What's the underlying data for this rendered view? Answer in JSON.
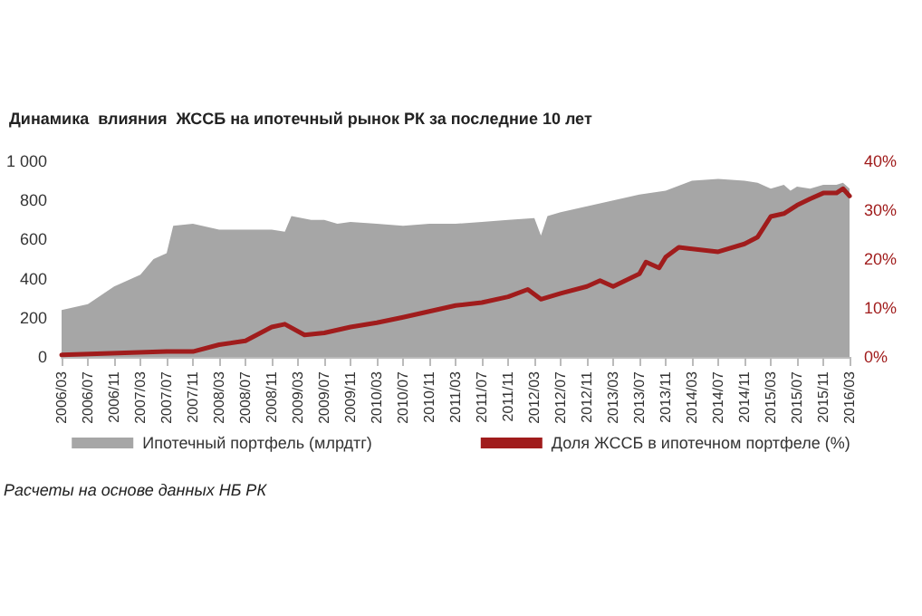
{
  "chart_data": {
    "type": "area",
    "title": "Динамика  влияния  ЖССБ на ипотечный рынок РК за последние 10 лет",
    "annotations": [
      "Расчеты на основе данных НБ РК"
    ],
    "xlim": [
      "2006-03",
      "2016-03"
    ],
    "xticks": [
      {
        "value": "2006-03",
        "label": "2006/03"
      },
      {
        "value": "2006-07",
        "label": "2006/07"
      },
      {
        "value": "2006-11",
        "label": "2006/11"
      },
      {
        "value": "2007-03",
        "label": "2007/03"
      },
      {
        "value": "2007-07",
        "label": "2007/07"
      },
      {
        "value": "2007-11",
        "label": "2007/11"
      },
      {
        "value": "2008-03",
        "label": "2008/03"
      },
      {
        "value": "2008-07",
        "label": "2008/07"
      },
      {
        "value": "2008-11",
        "label": "2008/11"
      },
      {
        "value": "2009-03",
        "label": "2009/03"
      },
      {
        "value": "2009-07",
        "label": "2009/07"
      },
      {
        "value": "2009-11",
        "label": "2009/11"
      },
      {
        "value": "2010-03",
        "label": "2010/03"
      },
      {
        "value": "2010-07",
        "label": "2010/07"
      },
      {
        "value": "2010-11",
        "label": "2010/11"
      },
      {
        "value": "2011-03",
        "label": "2011/03"
      },
      {
        "value": "2011-07",
        "label": "2011/07"
      },
      {
        "value": "2011-11",
        "label": "2011/11"
      },
      {
        "value": "2012-03",
        "label": "2012/03"
      },
      {
        "value": "2012-07",
        "label": "2012/07"
      },
      {
        "value": "2012-11",
        "label": "2012/11"
      },
      {
        "value": "2013-03",
        "label": "2013/03"
      },
      {
        "value": "2013-07",
        "label": "2013/07"
      },
      {
        "value": "2013-11",
        "label": "2013/11"
      },
      {
        "value": "2014-03",
        "label": "2014/03"
      },
      {
        "value": "2014-07",
        "label": "2014/07"
      },
      {
        "value": "2014-11",
        "label": "2014/11"
      },
      {
        "value": "2015-03",
        "label": "2015/03"
      },
      {
        "value": "2015-07",
        "label": "2015/07"
      },
      {
        "value": "2015-11",
        "label": "2015/11"
      },
      {
        "value": "2016-03",
        "label": "2016/03"
      }
    ],
    "ylim": [
      0,
      1000
    ],
    "yticks": [
      0,
      200,
      400,
      600,
      800,
      {
        "value": 1000,
        "label": "1 000"
      }
    ],
    "y2lim": [
      0,
      40
    ],
    "y2ticks": [
      {
        "value": 0,
        "label": "0%"
      },
      {
        "value": 10,
        "label": "10%"
      },
      {
        "value": 20,
        "label": "20%"
      },
      {
        "value": 30,
        "label": "30%"
      },
      {
        "value": 40,
        "label": "40%"
      }
    ],
    "legend": "bottom",
    "series": [
      {
        "name": "Ипотечный портфель (млрдтг)",
        "color": "#a6a6a6",
        "x": [
          "2006-03",
          "2006-07",
          "2006-11",
          "2007-03",
          "2007-05",
          "2007-07",
          "2007-08",
          "2007-11",
          "2008-03",
          "2008-07",
          "2008-11",
          "2009-01",
          "2009-02",
          "2009-05",
          "2009-07",
          "2009-09",
          "2009-11",
          "2010-03",
          "2010-07",
          "2010-11",
          "2011-03",
          "2011-07",
          "2011-11",
          "2012-03",
          "2012-04",
          "2012-05",
          "2012-07",
          "2012-11",
          "2013-03",
          "2013-07",
          "2013-11",
          "2014-03",
          "2014-07",
          "2014-11",
          "2015-01",
          "2015-03",
          "2015-05",
          "2015-06",
          "2015-07",
          "2015-09",
          "2015-11",
          "2016-01",
          "2016-02",
          "2016-03"
        ],
        "values": [
          240,
          270,
          360,
          420,
          500,
          530,
          670,
          680,
          650,
          650,
          650,
          640,
          720,
          700,
          700,
          680,
          690,
          680,
          670,
          680,
          680,
          690,
          700,
          710,
          620,
          720,
          740,
          770,
          800,
          830,
          850,
          900,
          910,
          900,
          890,
          860,
          880,
          850,
          870,
          860,
          880,
          880,
          890,
          860
        ]
      },
      {
        "name": "Доля ЖССБ в ипотечном портфеле (%)",
        "type": "line",
        "axis": "y2",
        "color": "#a01c1c",
        "x": [
          "2006-03",
          "2007-07",
          "2007-11",
          "2008-03",
          "2008-07",
          "2008-11",
          "2009-01",
          "2009-04",
          "2009-07",
          "2009-11",
          "2010-03",
          "2010-07",
          "2010-11",
          "2011-03",
          "2011-07",
          "2011-11",
          "2012-02",
          "2012-04",
          "2012-07",
          "2012-11",
          "2013-01",
          "2013-03",
          "2013-07",
          "2013-08",
          "2013-10",
          "2013-11",
          "2014-01",
          "2014-07",
          "2014-11",
          "2015-01",
          "2015-03",
          "2015-05",
          "2015-07",
          "2015-09",
          "2015-11",
          "2016-01",
          "2016-02",
          "2016-03"
        ],
        "values": [
          0.4,
          1.1,
          1.1,
          2.5,
          3.3,
          6.1,
          6.7,
          4.5,
          4.9,
          6.1,
          7,
          8.1,
          9.3,
          10.5,
          11.1,
          12.3,
          13.8,
          11.8,
          13,
          14.4,
          15.6,
          14.4,
          17,
          19.4,
          18.2,
          20.4,
          22.4,
          21.5,
          23.1,
          24.5,
          28.7,
          29.3,
          31,
          32.3,
          33.5,
          33.5,
          34.4,
          32.9
        ]
      }
    ]
  }
}
